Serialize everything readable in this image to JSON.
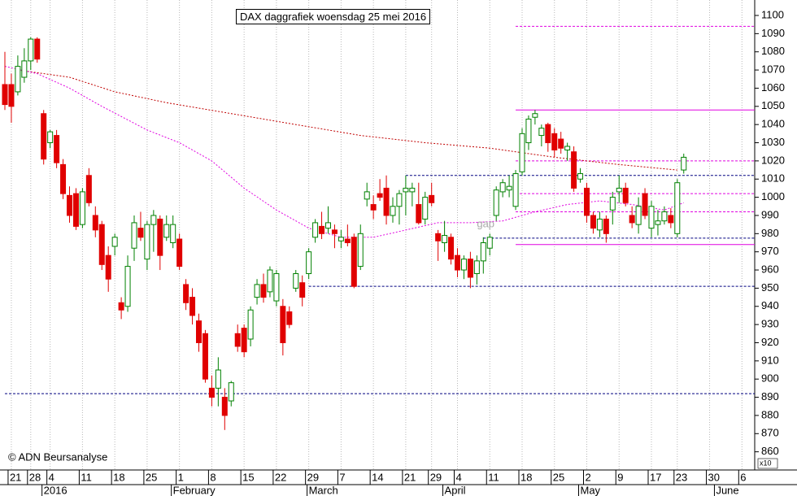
{
  "chart_data": {
    "type": "candlestick",
    "title": "DAX daggrafiek woensdag 25 mei 2016",
    "credit": "© ADN Beursanalyse",
    "yaxis_note": "x10",
    "ylim": [
      850,
      1108.5
    ],
    "yticks": [
      860,
      870,
      880,
      890,
      900,
      910,
      920,
      930,
      940,
      950,
      960,
      970,
      980,
      990,
      1000,
      1010,
      1020,
      1030,
      1040,
      1050,
      1060,
      1070,
      1080,
      1090,
      1100
    ],
    "grid": "vertical",
    "up_color": "#ffffff",
    "up_edge": "#008000",
    "down_color": "#e00000",
    "categories": [
      null,
      "21",
      null,
      null,
      "28",
      null,
      null,
      "4",
      null,
      null,
      null,
      null,
      "11",
      null,
      null,
      null,
      null,
      "18",
      null,
      null,
      null,
      null,
      "25",
      null,
      null,
      null,
      null,
      "1",
      null,
      null,
      null,
      null,
      "8",
      null,
      null,
      null,
      null,
      "15",
      null,
      null,
      null,
      null,
      "22",
      null,
      null,
      null,
      null,
      "29",
      null,
      null,
      null,
      null,
      "7",
      null,
      null,
      null,
      null,
      "14",
      null,
      null,
      null,
      null,
      "21",
      null,
      null,
      null,
      "29",
      null,
      null,
      null,
      "4",
      null,
      null,
      null,
      null,
      "11",
      null,
      null,
      null,
      null,
      "18",
      null,
      null,
      null,
      null,
      "25",
      null,
      null,
      null,
      null,
      "2",
      null,
      null,
      null,
      null,
      "9",
      null,
      null,
      null,
      null,
      "17",
      null,
      null,
      null,
      "23",
      null,
      null,
      null,
      null,
      "30",
      null,
      null,
      null,
      null,
      "6"
    ],
    "months": [
      null,
      null,
      null,
      null,
      null,
      null,
      null,
      "2016",
      null,
      null,
      null,
      null,
      null,
      null,
      null,
      null,
      null,
      null,
      null,
      null,
      null,
      null,
      null,
      null,
      null,
      null,
      null,
      "February",
      null,
      null,
      null,
      null,
      null,
      null,
      null,
      null,
      null,
      null,
      null,
      null,
      null,
      null,
      null,
      null,
      null,
      null,
      null,
      null,
      "March",
      null,
      null,
      null,
      null,
      null,
      null,
      null,
      null,
      null,
      null,
      null,
      null,
      null,
      null,
      null,
      null,
      null,
      null,
      null,
      null,
      "April",
      null,
      null,
      null,
      null,
      null,
      null,
      null,
      null,
      null,
      null,
      null,
      null,
      null,
      null,
      null,
      null,
      null,
      null,
      null,
      null,
      "May",
      null,
      null,
      null,
      null,
      null,
      null,
      null,
      null,
      null,
      null,
      null,
      null,
      null,
      null,
      null,
      null,
      null,
      null,
      null,
      null,
      "June",
      null,
      null,
      null
    ],
    "ohlc": [
      [
        1062,
        1080,
        1048,
        1051
      ],
      [
        1062,
        1068,
        1041,
        1050
      ],
      [
        1058,
        1078,
        1056,
        1072
      ],
      [
        1066,
        1082,
        1063,
        1075
      ],
      [
        1075,
        1088,
        1070,
        1087
      ],
      [
        1087,
        1088,
        1074,
        1076
      ],
      [
        1046,
        1048,
        1018,
        1021
      ],
      [
        1030,
        1037,
        1027,
        1036
      ],
      [
        1034,
        1037,
        1016,
        1019
      ],
      [
        1018,
        1021,
        999,
        1002
      ],
      [
        1001,
        1006,
        986,
        990
      ],
      [
        1002,
        1005,
        982,
        984
      ],
      [
        985,
        1005,
        983,
        1003
      ],
      [
        1012,
        1016,
        995,
        997
      ],
      [
        990,
        995,
        978,
        982
      ],
      [
        985,
        987,
        960,
        963
      ],
      [
        968,
        973,
        948,
        955
      ],
      [
        973,
        980,
        968,
        978
      ],
      [
        942,
        945,
        933,
        938
      ],
      [
        940,
        968,
        937,
        962
      ],
      [
        972,
        990,
        965,
        986
      ],
      [
        983,
        992,
        976,
        978
      ],
      [
        966,
        987,
        960,
        985
      ],
      [
        985,
        993,
        970,
        990
      ],
      [
        988,
        990,
        960,
        968
      ],
      [
        978,
        990,
        976,
        985
      ],
      [
        975,
        990,
        972,
        985
      ],
      [
        977,
        980,
        960,
        962
      ],
      [
        952,
        955,
        938,
        942
      ],
      [
        945,
        950,
        930,
        935
      ],
      [
        932,
        936,
        915,
        920
      ],
      [
        925,
        927,
        898,
        900
      ],
      [
        895,
        902,
        885,
        890
      ],
      [
        895,
        912,
        885,
        905
      ],
      [
        890,
        895,
        872,
        880
      ],
      [
        888,
        899,
        885,
        898
      ],
      [
        925,
        930,
        915,
        918
      ],
      [
        928,
        930,
        912,
        915
      ],
      [
        922,
        940,
        918,
        938
      ],
      [
        945,
        955,
        941,
        952
      ],
      [
        952,
        958,
        942,
        945
      ],
      [
        948,
        962,
        945,
        960
      ],
      [
        943,
        960,
        940,
        958
      ],
      [
        940,
        944,
        913,
        920
      ],
      [
        937,
        940,
        928,
        930
      ],
      [
        950,
        960,
        948,
        958
      ],
      [
        953,
        957,
        940,
        945
      ],
      [
        958,
        972,
        955,
        970
      ],
      [
        978,
        988,
        975,
        986
      ],
      [
        984,
        992,
        977,
        980
      ],
      [
        983,
        995,
        980,
        986
      ],
      [
        982,
        985,
        972,
        980
      ],
      [
        976,
        982,
        972,
        978
      ],
      [
        977,
        985,
        973,
        975
      ],
      [
        978,
        980,
        950,
        951
      ],
      [
        962,
        985,
        960,
        980
      ],
      [
        999,
        1008,
        995,
        1003
      ],
      [
        996,
        1001,
        988,
        993
      ],
      [
        1002,
        1010,
        998,
        1000
      ],
      [
        1005,
        1012,
        985,
        990
      ],
      [
        990,
        1000,
        986,
        995
      ],
      [
        995,
        1004,
        985,
        1002
      ],
      [
        1003,
        1012,
        990,
        1005
      ],
      [
        1003,
        1008,
        995,
        1005
      ],
      [
        996,
        1008,
        985,
        986
      ],
      [
        988,
        1003,
        985,
        1000
      ],
      [
        1001,
        1008,
        995,
        997
      ],
      [
        980,
        982,
        965,
        976
      ],
      [
        975,
        987,
        970,
        979
      ],
      [
        978,
        980,
        963,
        966
      ],
      [
        968,
        972,
        956,
        960
      ],
      [
        960,
        968,
        955,
        966
      ],
      [
        966,
        970,
        950,
        956
      ],
      [
        958,
        968,
        952,
        965
      ],
      [
        965,
        978,
        958,
        975
      ],
      [
        972,
        980,
        968,
        978
      ],
      [
        990,
        1006,
        987,
        1004
      ],
      [
        1003,
        1010,
        1000,
        1008
      ],
      [
        1004,
        1012,
        1000,
        1006
      ],
      [
        995,
        1015,
        993,
        1013
      ],
      [
        1014,
        1038,
        1012,
        1035
      ],
      [
        1030,
        1045,
        1026,
        1043
      ],
      [
        1044,
        1048,
        1040,
        1046
      ],
      [
        1034,
        1040,
        1028,
        1038
      ],
      [
        1040,
        1041,
        1025,
        1030
      ],
      [
        1035,
        1038,
        1022,
        1026
      ],
      [
        1032,
        1036,
        1024,
        1027
      ],
      [
        1026,
        1030,
        1020,
        1028
      ],
      [
        1025,
        1028,
        1003,
        1005
      ],
      [
        1010,
        1016,
        1008,
        1013
      ],
      [
        1005,
        1008,
        986,
        990
      ],
      [
        990,
        992,
        980,
        983
      ],
      [
        982,
        992,
        978,
        988
      ],
      [
        988,
        990,
        975,
        980
      ],
      [
        993,
        1003,
        985,
        1000
      ],
      [
        1003,
        1012,
        997,
        1005
      ],
      [
        1005,
        1008,
        995,
        997
      ],
      [
        990,
        995,
        983,
        986
      ],
      [
        985,
        1000,
        980,
        995
      ],
      [
        1002,
        1005,
        988,
        990
      ],
      [
        983,
        998,
        978,
        995
      ],
      [
        985,
        993,
        979,
        987
      ],
      [
        987,
        995,
        985,
        992
      ],
      [
        990,
        994,
        983,
        986
      ],
      [
        980,
        1010,
        978,
        1008
      ],
      [
        1015,
        1024,
        1013,
        1022
      ],
      null,
      null,
      null,
      null,
      null,
      null,
      null,
      null,
      null
    ],
    "moving_averages": [
      {
        "color": "#c00000",
        "x": [
          2,
          10,
          17,
          25,
          35,
          45,
          55,
          65,
          75,
          85,
          95,
          104
        ],
        "values": [
          1070,
          1066,
          1058,
          1052,
          1046,
          1040,
          1034,
          1030,
          1027,
          1022,
          1018,
          1015
        ]
      },
      {
        "color": "#e000e0",
        "x": [
          0,
          5,
          10,
          15,
          22,
          27,
          32,
          37,
          42,
          47,
          52,
          57,
          62,
          67,
          72,
          77,
          82,
          87,
          92,
          97,
          102,
          105
        ],
        "values": [
          1072,
          1068,
          1060,
          1050,
          1037,
          1030,
          1020,
          1005,
          993,
          983,
          978,
          978,
          982,
          986,
          986,
          987,
          992,
          996,
          998,
          996,
          993,
          997
        ]
      }
    ],
    "levels": [
      {
        "value": 1094,
        "from": 79,
        "color": "#e000e0",
        "style": "dashed"
      },
      {
        "value": 1048,
        "from": 79,
        "color": "#e000e0",
        "style": "solid"
      },
      {
        "value": 1020,
        "from": 79,
        "color": "#e000e0",
        "style": "dashed"
      },
      {
        "value": 1002,
        "from": 79,
        "color": "#e000e0",
        "style": "dashed"
      },
      {
        "value": 992,
        "from": 79,
        "color": "#e000e0",
        "style": "dashed"
      },
      {
        "value": 974,
        "from": 79,
        "color": "#e000e0",
        "style": "solid"
      },
      {
        "value": 1012,
        "from": 62,
        "color": "#000080",
        "style": "dashed"
      },
      {
        "value": 977.5,
        "from": 74,
        "color": "#000080",
        "style": "dashed"
      },
      {
        "value": 951,
        "from": 47,
        "color": "#000080",
        "style": "dashed"
      },
      {
        "value": 892,
        "from": 0,
        "color": "#000080",
        "style": "dashed"
      }
    ],
    "annotations": [
      {
        "text": "gap",
        "x": 73,
        "y": 985
      }
    ]
  }
}
